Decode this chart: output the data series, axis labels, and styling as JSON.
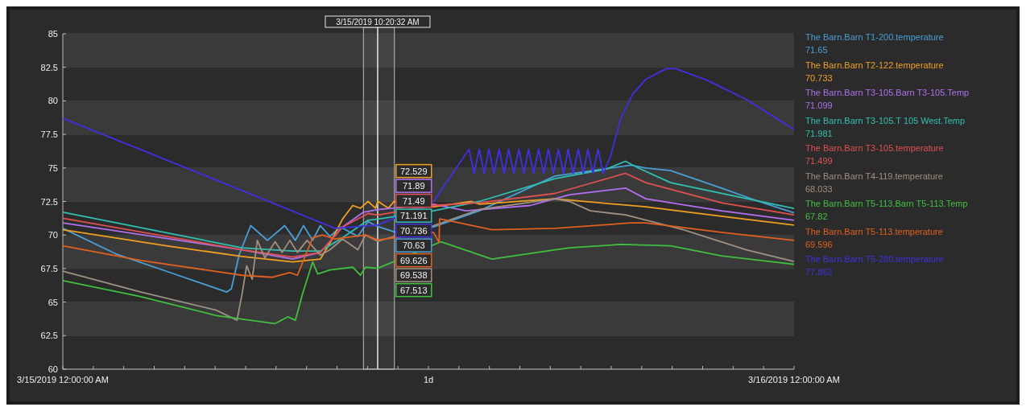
{
  "chart_data": {
    "type": "line",
    "legend": "right",
    "grid": "y",
    "line_style": "solid",
    "marker": "none",
    "xlim": [
      "2019-03-15T00:00",
      "2019-03-16T00:00"
    ],
    "ylim": [
      60,
      85
    ],
    "xticks": [
      {
        "value": "2019-03-15T00:00",
        "label": "3/15/2019 12:00:00 AM"
      },
      {
        "value": "2019-03-15T01:00",
        "label": null
      },
      {
        "value": "2019-03-15T02:00",
        "label": null
      },
      {
        "value": "2019-03-15T03:00",
        "label": null
      },
      {
        "value": "2019-03-15T04:00",
        "label": null
      },
      {
        "value": "2019-03-15T05:00",
        "label": null
      },
      {
        "value": "2019-03-15T06:00",
        "label": null
      },
      {
        "value": "2019-03-15T07:00",
        "label": null
      },
      {
        "value": "2019-03-15T08:00",
        "label": null
      },
      {
        "value": "2019-03-15T09:00",
        "label": null
      },
      {
        "value": "2019-03-15T10:00",
        "label": null
      },
      {
        "value": "2019-03-15T11:00",
        "label": null
      },
      {
        "value": "2019-03-15T12:00",
        "label": "1d"
      },
      {
        "value": "2019-03-15T13:00",
        "label": null
      },
      {
        "value": "2019-03-15T14:00",
        "label": null
      },
      {
        "value": "2019-03-15T15:00",
        "label": null
      },
      {
        "value": "2019-03-15T16:00",
        "label": null
      },
      {
        "value": "2019-03-15T17:00",
        "label": null
      },
      {
        "value": "2019-03-15T18:00",
        "label": null
      },
      {
        "value": "2019-03-15T19:00",
        "label": null
      },
      {
        "value": "2019-03-15T20:00",
        "label": null
      },
      {
        "value": "2019-03-15T21:00",
        "label": null
      },
      {
        "value": "2019-03-15T22:00",
        "label": null
      },
      {
        "value": "2019-03-15T23:00",
        "label": null
      },
      {
        "value": "2019-03-16T00:00",
        "label": "3/16/2019 12:00:00 AM"
      }
    ],
    "yticks": [
      60,
      62.5,
      65,
      67.5,
      70,
      72.5,
      75,
      77.5,
      80,
      82.5,
      85
    ],
    "ref_lines": [
      {
        "axis": "x",
        "value": "2019-03-15T10:20",
        "label": "3/15/2019 10:20:32 AM",
        "color": "#e8e8e8"
      }
    ],
    "bands": [
      {
        "axis": "x",
        "from": "2019-03-15T09:52",
        "to": "2019-03-15T10:53",
        "color": "#bfbfbf"
      }
    ],
    "annotations": [
      "71.65",
      "70.733",
      "71.099",
      "71.981",
      "71.499",
      "68.033",
      "67.82",
      "69.596",
      "77.862",
      "72.529",
      "71.89",
      "71.49",
      "71.191",
      "70.736",
      "70.63",
      "69.626",
      "69.538",
      "67.513"
    ],
    "series": [
      {
        "name": "The Barn.Barn T1-200.temperature",
        "color": "#4a9fd8",
        "x": [
          "2019-03-15T00:00",
          "2019-03-15T01:44",
          "2019-03-15T03:24",
          "2019-03-15T05:23",
          "2019-03-15T05:32",
          "2019-03-15T05:47",
          "2019-03-15T06:10",
          "2019-03-15T06:43",
          "2019-03-15T07:17",
          "2019-03-15T07:38",
          "2019-03-15T07:54",
          "2019-03-15T08:12",
          "2019-03-15T08:27",
          "2019-03-15T08:46",
          "2019-03-15T09:07",
          "2019-03-15T09:41",
          "2019-03-15T10:01",
          "2019-03-15T10:20",
          "2019-03-15T10:56",
          "2019-03-15T12:10",
          "2019-03-15T13:40",
          "2019-03-15T16:09",
          "2019-03-15T18:38",
          "2019-03-15T19:08",
          "2019-03-15T19:57",
          "2019-03-15T21:37",
          "2019-03-15T22:51",
          "2019-03-16T00:00"
        ],
        "values": [
          70.5,
          68.6,
          67.3,
          65.75,
          66.0,
          68.5,
          70.7,
          69.6,
          70.7,
          69.6,
          70.7,
          69.6,
          70.7,
          69.9,
          70.6,
          69.9,
          71.0,
          70.63,
          70.2,
          70.6,
          71.8,
          74.4,
          75.2,
          75.0,
          74.8,
          73.5,
          72.5,
          71.65
        ]
      },
      {
        "name": "The Barn.Barn T2-122.temperature",
        "color": "#f0a020",
        "x": [
          "2019-03-15T00:00",
          "2019-03-15T03:24",
          "2019-03-15T05:53",
          "2019-03-15T07:32",
          "2019-03-15T08:27",
          "2019-03-15T08:46",
          "2019-03-15T09:11",
          "2019-03-15T09:31",
          "2019-03-15T09:46",
          "2019-03-15T10:01",
          "2019-03-15T10:16",
          "2019-03-15T10:20",
          "2019-03-15T10:41",
          "2019-03-15T10:52",
          "2019-03-15T12:10",
          "2019-03-15T13:25",
          "2019-03-15T13:40",
          "2019-03-15T16:09",
          "2019-03-15T19:08",
          "2019-03-15T21:37",
          "2019-03-16T00:00"
        ],
        "values": [
          70.4,
          69.2,
          68.4,
          68.0,
          68.2,
          69.4,
          71.2,
          72.2,
          72.0,
          72.5,
          72.0,
          72.529,
          72.0,
          72.5,
          72.1,
          72.5,
          72.3,
          72.7,
          72.1,
          71.4,
          70.733
        ]
      },
      {
        "name": "The Barn.Barn T3-105.Barn T3-105.Temp",
        "color": "#b070f0",
        "x": [
          "2019-03-15T00:00",
          "2019-03-15T05:53",
          "2019-03-15T07:32",
          "2019-03-15T08:27",
          "2019-03-15T09:11",
          "2019-03-15T09:52",
          "2019-03-15T10:20",
          "2019-03-15T12:10",
          "2019-03-15T13:14",
          "2019-03-15T15:20",
          "2019-03-15T16:38",
          "2019-03-15T18:28",
          "2019-03-15T19:08",
          "2019-03-15T21:37",
          "2019-03-16T00:00"
        ],
        "values": [
          70.9,
          68.9,
          68.2,
          68.7,
          70.6,
          71.7,
          71.89,
          72.3,
          71.8,
          72.2,
          73.0,
          73.5,
          72.7,
          71.8,
          71.099
        ]
      },
      {
        "name": "The Barn.Barn T3-105.T 105 West.Temp",
        "color": "#30c0b0",
        "x": [
          "2019-03-15T00:00",
          "2019-03-15T05:53",
          "2019-03-15T07:32",
          "2019-03-15T08:27",
          "2019-03-15T09:11",
          "2019-03-15T10:01",
          "2019-03-15T10:20",
          "2019-03-15T12:10",
          "2019-03-15T13:40",
          "2019-03-15T16:09",
          "2019-03-15T17:49",
          "2019-03-15T18:28",
          "2019-03-15T18:53",
          "2019-03-15T19:57",
          "2019-03-15T21:37",
          "2019-03-16T00:00"
        ],
        "values": [
          71.7,
          69.05,
          68.8,
          68.8,
          69.8,
          71.1,
          71.191,
          71.8,
          72.5,
          74.2,
          74.9,
          75.5,
          75.0,
          73.9,
          73.1,
          71.981
        ]
      },
      {
        "name": "The Barn.Barn T3-105.temperature",
        "color": "#e05050",
        "x": [
          "2019-03-15T00:00",
          "2019-03-15T05:53",
          "2019-03-15T07:32",
          "2019-03-15T08:27",
          "2019-03-15T09:11",
          "2019-03-15T10:01",
          "2019-03-15T10:20",
          "2019-03-15T12:10",
          "2019-03-15T13:40",
          "2019-03-15T16:09",
          "2019-03-15T18:28",
          "2019-03-15T19:08",
          "2019-03-15T21:37",
          "2019-03-16T00:00"
        ],
        "values": [
          71.25,
          68.9,
          68.35,
          68.7,
          70.6,
          71.6,
          71.49,
          72.2,
          72.4,
          73.1,
          74.6,
          73.9,
          72.4,
          71.499
        ]
      },
      {
        "name": "The Barn.Barn T4-119.temperature",
        "color": "#a09080",
        "x": [
          "2019-03-15T00:00",
          "2019-03-15T02:34",
          "2019-03-15T05:02",
          "2019-03-15T05:43",
          "2019-03-15T05:53",
          "2019-03-15T06:02",
          "2019-03-15T06:13",
          "2019-03-15T06:23",
          "2019-03-15T06:38",
          "2019-03-15T06:58",
          "2019-03-15T07:12",
          "2019-03-15T07:27",
          "2019-03-15T07:42",
          "2019-03-15T08:01",
          "2019-03-15T08:27",
          "2019-03-15T08:46",
          "2019-03-15T09:11",
          "2019-03-15T09:41",
          "2019-03-15T09:56",
          "2019-03-15T10:20",
          "2019-03-15T12:10",
          "2019-03-15T13:40",
          "2019-03-15T16:09",
          "2019-03-15T16:38",
          "2019-03-15T17:19",
          "2019-03-15T18:28",
          "2019-03-15T20:22",
          "2019-03-15T22:26",
          "2019-03-16T00:00"
        ],
        "values": [
          67.3,
          65.75,
          64.4,
          63.65,
          65.6,
          67.7,
          66.7,
          69.6,
          68.3,
          69.5,
          68.7,
          69.6,
          68.7,
          69.6,
          68.5,
          68.9,
          69.7,
          68.9,
          70.0,
          69.538,
          70.7,
          71.9,
          72.7,
          72.5,
          71.8,
          71.5,
          70.4,
          68.9,
          68.033
        ]
      },
      {
        "name": "The Barn.Barn T5-113.Barn T5-113.Temp",
        "color": "#40c040",
        "x": [
          "2019-03-15T00:00",
          "2019-03-15T02:34",
          "2019-03-15T05:02",
          "2019-03-15T06:58",
          "2019-03-15T07:23",
          "2019-03-15T07:38",
          "2019-03-15T07:52",
          "2019-03-15T08:12",
          "2019-03-15T08:22",
          "2019-03-15T08:46",
          "2019-03-15T09:31",
          "2019-03-15T09:46",
          "2019-03-15T09:56",
          "2019-03-15T10:20",
          "2019-03-15T12:25",
          "2019-03-15T14:05",
          "2019-03-15T16:09",
          "2019-03-15T16:38",
          "2019-03-15T18:19",
          "2019-03-15T19:57",
          "2019-03-15T21:37",
          "2019-03-16T00:00"
        ],
        "values": [
          66.6,
          65.4,
          64.0,
          63.4,
          63.9,
          63.65,
          65.6,
          68.0,
          67.1,
          67.4,
          67.6,
          67.0,
          67.6,
          67.513,
          69.5,
          68.2,
          68.9,
          69.05,
          69.3,
          69.2,
          68.45,
          67.82
        ]
      },
      {
        "name": "The Barn.Barn T5-113.temperature",
        "color": "#e06020",
        "x": [
          "2019-03-15T00:00",
          "2019-03-15T02:34",
          "2019-03-15T05:53",
          "2019-03-15T06:53",
          "2019-03-15T07:27",
          "2019-03-15T07:42",
          "2019-03-15T08:12",
          "2019-03-15T08:31",
          "2019-03-15T08:56",
          "2019-03-15T09:56",
          "2019-03-15T10:20",
          "2019-03-15T12:10",
          "2019-03-15T12:21",
          "2019-03-15T12:22",
          "2019-03-15T12:50",
          "2019-03-15T14:05",
          "2019-03-15T16:09",
          "2019-03-15T18:38",
          "2019-03-15T19:08",
          "2019-03-15T21:37",
          "2019-03-16T00:00"
        ],
        "values": [
          69.2,
          68.1,
          67.0,
          66.85,
          67.2,
          67.0,
          69.8,
          70.0,
          69.7,
          70.0,
          69.626,
          70.2,
          69.45,
          71.2,
          71.0,
          70.4,
          70.5,
          70.9,
          70.9,
          70.2,
          69.596
        ]
      },
      {
        "name": "The Barn.Barn T5-280.temperature",
        "color": "#4030e0",
        "x": [
          "2019-03-15T00:00",
          "2019-03-15T05:02",
          "2019-03-15T08:56",
          "2019-03-15T10:20",
          "2019-03-15T12:10",
          "2019-03-15T13:20",
          "2019-03-15T13:30",
          "2019-03-15T13:40",
          "2019-03-15T13:50",
          "2019-03-15T13:59",
          "2019-03-15T14:09",
          "2019-03-15T14:19",
          "2019-03-15T14:29",
          "2019-03-15T14:38",
          "2019-03-15T14:48",
          "2019-03-15T14:58",
          "2019-03-15T15:08",
          "2019-03-15T15:17",
          "2019-03-15T15:27",
          "2019-03-15T15:37",
          "2019-03-15T15:47",
          "2019-03-15T15:56",
          "2019-03-15T16:06",
          "2019-03-15T16:16",
          "2019-03-15T16:26",
          "2019-03-15T16:35",
          "2019-03-15T16:45",
          "2019-03-15T16:55",
          "2019-03-15T17:05",
          "2019-03-15T17:14",
          "2019-03-15T17:24",
          "2019-03-15T17:34",
          "2019-03-15T17:44",
          "2019-03-15T17:58",
          "2019-03-15T18:19",
          "2019-03-15T18:42",
          "2019-03-15T19:08",
          "2019-03-15T19:48",
          "2019-03-15T20:07",
          "2019-03-15T21:11",
          "2019-03-15T22:26",
          "2019-03-16T00:00"
        ],
        "values": [
          78.7,
          74.1,
          70.5,
          70.736,
          72.5,
          76.4,
          74.6,
          76.4,
          74.6,
          76.4,
          74.6,
          76.4,
          74.6,
          76.4,
          74.6,
          76.4,
          74.6,
          76.4,
          74.6,
          76.4,
          74.6,
          76.4,
          74.6,
          76.4,
          74.6,
          76.4,
          74.6,
          76.4,
          74.6,
          76.4,
          74.6,
          76.4,
          74.6,
          75.8,
          78.7,
          80.5,
          81.6,
          82.4,
          82.4,
          81.5,
          80.1,
          77.862
        ]
      }
    ]
  }
}
